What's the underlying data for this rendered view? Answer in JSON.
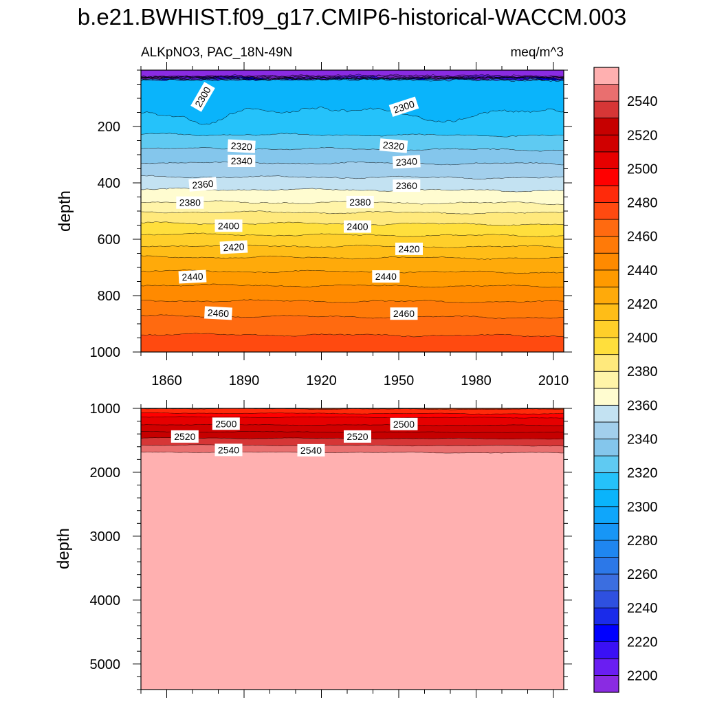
{
  "chart_data": {
    "type": "heatmap",
    "title": "b.e21.BWHIST.f09_g17.CMIP6-historical-WACCM.003",
    "left_string": "ALKpNO3, PAC_18N-49N",
    "right_string": "meq/m^3",
    "ylabel": "depth",
    "xlabel": "",
    "x_ticks": [
      1860,
      1890,
      1920,
      1950,
      1980,
      2010
    ],
    "xlim": [
      1850,
      2014
    ],
    "panels": [
      {
        "name": "upper",
        "ylim": [
          0,
          1000
        ],
        "y_reversed": true,
        "y_ticks": [
          200,
          400,
          600,
          800,
          1000
        ],
        "contour_labels": [
          {
            "text": "2300",
            "x": 1874,
            "depth": 95,
            "angle": -60
          },
          {
            "text": "2300",
            "x": 1952,
            "depth": 130,
            "angle": -18
          },
          {
            "text": "2320",
            "x": 1889,
            "depth": 270,
            "angle": 3
          },
          {
            "text": "2320",
            "x": 1948,
            "depth": 268,
            "angle": 5
          },
          {
            "text": "2340",
            "x": 1889,
            "depth": 322,
            "angle": 0
          },
          {
            "text": "2340",
            "x": 1953,
            "depth": 325,
            "angle": -3
          },
          {
            "text": "2360",
            "x": 1874,
            "depth": 405,
            "angle": -5
          },
          {
            "text": "2360",
            "x": 1953,
            "depth": 410,
            "angle": 0
          },
          {
            "text": "2380",
            "x": 1869,
            "depth": 470,
            "angle": 0
          },
          {
            "text": "2380",
            "x": 1935,
            "depth": 468,
            "angle": 0
          },
          {
            "text": "2400",
            "x": 1884,
            "depth": 552,
            "angle": 0
          },
          {
            "text": "2400",
            "x": 1934,
            "depth": 555,
            "angle": 0
          },
          {
            "text": "2420",
            "x": 1886,
            "depth": 628,
            "angle": -3
          },
          {
            "text": "2420",
            "x": 1954,
            "depth": 634,
            "angle": 0
          },
          {
            "text": "2440",
            "x": 1870,
            "depth": 733,
            "angle": -3
          },
          {
            "text": "2440",
            "x": 1945,
            "depth": 732,
            "angle": 0
          },
          {
            "text": "2460",
            "x": 1880,
            "depth": 862,
            "angle": 3
          },
          {
            "text": "2460",
            "x": 1952,
            "depth": 864,
            "angle": 0
          }
        ]
      },
      {
        "name": "lower",
        "ylim": [
          1000,
          5400
        ],
        "y_reversed": true,
        "y_ticks": [
          1000,
          2000,
          3000,
          4000,
          5000
        ],
        "contour_labels": [
          {
            "text": "2500",
            "x": 1883,
            "depth": 1240,
            "angle": 0
          },
          {
            "text": "2500",
            "x": 1952,
            "depth": 1245,
            "angle": 0
          },
          {
            "text": "2520",
            "x": 1867,
            "depth": 1440,
            "angle": 0
          },
          {
            "text": "2520",
            "x": 1934,
            "depth": 1440,
            "angle": 0
          },
          {
            "text": "2540",
            "x": 1884,
            "depth": 1650,
            "angle": 0
          },
          {
            "text": "2540",
            "x": 1916,
            "depth": 1655,
            "angle": 0
          }
        ]
      }
    ],
    "colorbar": {
      "levels": [
        2200,
        2210,
        2220,
        2230,
        2240,
        2250,
        2260,
        2270,
        2280,
        2290,
        2300,
        2310,
        2320,
        2330,
        2340,
        2350,
        2360,
        2370,
        2380,
        2390,
        2400,
        2410,
        2420,
        2430,
        2440,
        2450,
        2460,
        2470,
        2480,
        2490,
        2500,
        2510,
        2520,
        2530,
        2540,
        2550
      ],
      "colors": [
        "#8a2be2",
        "#6a1ef2",
        "#3a10f5",
        "#0000ff",
        "#1a2bea",
        "#2e50e0",
        "#3b6ee0",
        "#2c78e8",
        "#1f86f0",
        "#1796f6",
        "#0fa6fb",
        "#0ab4fb",
        "#25c2fa",
        "#5fcaf2",
        "#84c6ec",
        "#a2cfec",
        "#c3e2f2",
        "#fffcd0",
        "#fff4a8",
        "#ffe97c",
        "#ffdf3c",
        "#ffcf2a",
        "#ffbd17",
        "#ffaa0a",
        "#ff9a00",
        "#ff8a00",
        "#ff7a08",
        "#ff6a10",
        "#ff4a10",
        "#ff2a0a",
        "#ff0000",
        "#e60000",
        "#d00000",
        "#c60000",
        "#d63636",
        "#e96f6f",
        "#ffb0b0"
      ],
      "tick_labels": [
        2200,
        2220,
        2240,
        2260,
        2280,
        2300,
        2320,
        2340,
        2360,
        2380,
        2400,
        2420,
        2440,
        2460,
        2480,
        2500,
        2520,
        2540
      ]
    }
  }
}
